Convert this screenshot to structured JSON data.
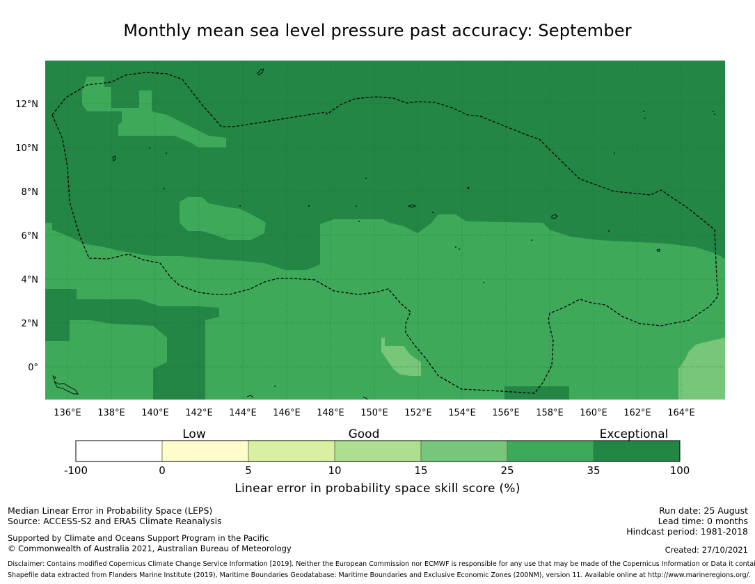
{
  "title": "Monthly mean sea level pressure past accuracy: September",
  "map": {
    "lat_labels": [
      "12°N",
      "10°N",
      "8°N",
      "6°N",
      "4°N",
      "2°N",
      "0°"
    ],
    "lon_labels": [
      "136°E",
      "138°E",
      "140°E",
      "142°E",
      "144°E",
      "146°E",
      "148°E",
      "150°E",
      "152°E",
      "154°E",
      "156°E",
      "158°E",
      "160°E",
      "162°E",
      "164°E"
    ],
    "colors": {
      "exceptional": "#238645",
      "very_good": "#3fa95a",
      "good_plus": "#77c67a",
      "good": "#addf91",
      "fair": "#d9f0a3",
      "low": "#fffccc",
      "none": "#ffffff",
      "coast": "#000000",
      "eez": "#000000",
      "grid": "#1b5e30"
    }
  },
  "colorbar": {
    "category_labels": [
      "Low",
      "Good",
      "Exceptional"
    ],
    "tick_labels": [
      "-100",
      "0",
      "5",
      "10",
      "15",
      "25",
      "35",
      "100"
    ],
    "title": "Linear error in probability space skill score (%)",
    "bins": [
      {
        "from": "-100",
        "to": "0",
        "color": "#ffffff"
      },
      {
        "from": "0",
        "to": "5",
        "color": "#fffccc"
      },
      {
        "from": "5",
        "to": "10",
        "color": "#d9f0a3"
      },
      {
        "from": "10",
        "to": "15",
        "color": "#addf91"
      },
      {
        "from": "15",
        "to": "25",
        "color": "#77c67a"
      },
      {
        "from": "25",
        "to": "35",
        "color": "#3fa95a"
      },
      {
        "from": "35",
        "to": "100",
        "color": "#238645"
      }
    ]
  },
  "footer": {
    "left_line1": "Median Linear Error in Probability Space (LEPS)",
    "left_line2": "Source: ACCESS-S2 and ERA5 Climate Reanalysis",
    "left_line3": "Supported by Climate and Oceans Support Program in the Pacific",
    "left_line4": "© Commonwealth of Australia 2021, Australian Bureau of Meteorology",
    "right_line1": "Run date: 25 August",
    "right_line2": "Lead time: 0 months",
    "right_line3": "Hindcast period: 1981-2018",
    "right_line4": "Created: 27/10/2021",
    "disclaimer1": "Disclaimer: Contains modified Copernicus Climate Change Service Information [2019]. Neither the European Commission nor ECMWF is responsible for any use that may be made of the Copernicus Information or Data it contains.",
    "disclaimer2": "Shapefile data extracted from Flanders Marine Institute (2019), Maritime Boundaries Geodatabase: Maritime Boundaries and Exclusive Economic Zones (200NM), version 11. Available online at http://www.marineregions.org/."
  }
}
